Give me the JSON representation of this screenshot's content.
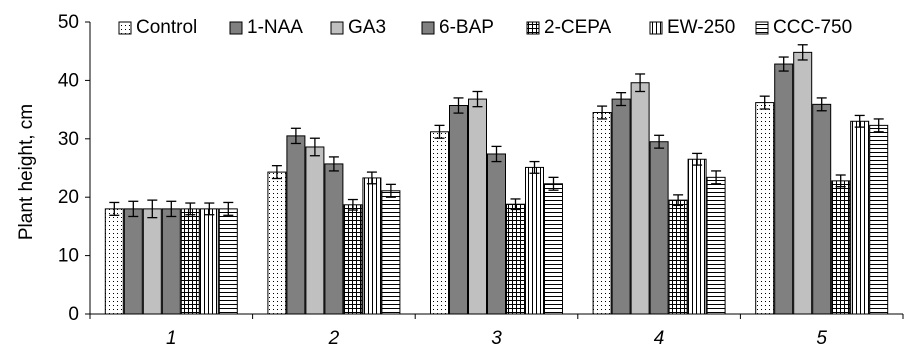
{
  "chart_data": {
    "type": "bar",
    "ylabel": "Plant height, cm",
    "xlabel": "",
    "ylim": [
      0,
      50
    ],
    "yticks": [
      0,
      10,
      20,
      30,
      40,
      50
    ],
    "categories": [
      "1",
      "2",
      "3",
      "4",
      "5"
    ],
    "error_bars": true,
    "legend_position": "top",
    "series": [
      {
        "name": "Control",
        "pattern": "dots",
        "values": [
          18,
          24.3,
          31.2,
          34.5,
          36.2
        ],
        "errors": [
          1.1,
          1.1,
          1.1,
          1.1,
          1.1
        ]
      },
      {
        "name": "1-NAA",
        "pattern": "dark-gray",
        "values": [
          18,
          30.5,
          35.7,
          36.8,
          42.8
        ],
        "errors": [
          1.3,
          1.3,
          1.3,
          1.1,
          1.2
        ]
      },
      {
        "name": "GA3",
        "pattern": "light-gray",
        "values": [
          18,
          28.6,
          36.8,
          39.6,
          44.8
        ],
        "errors": [
          1.5,
          1.5,
          1.3,
          1.5,
          1.3
        ]
      },
      {
        "name": "6-BAP",
        "pattern": "dark-gray",
        "values": [
          18,
          25.7,
          27.4,
          29.5,
          35.9
        ],
        "errors": [
          1.3,
          1.2,
          1.3,
          1.1,
          1.1
        ]
      },
      {
        "name": "2-CEPA",
        "pattern": "grid",
        "values": [
          18,
          18.7,
          18.8,
          19.5,
          22.8
        ],
        "errors": [
          1,
          0.9,
          0.9,
          0.9,
          1
        ]
      },
      {
        "name": "EW-250",
        "pattern": "vertical-lines",
        "values": [
          18,
          23.3,
          25.1,
          26.5,
          33
        ],
        "errors": [
          1,
          1,
          1,
          1,
          1
        ]
      },
      {
        "name": "CCC-750",
        "pattern": "horizontal-lines",
        "values": [
          18,
          21.1,
          22.3,
          23.4,
          32.3
        ],
        "errors": [
          1.1,
          1.1,
          1.1,
          1.1,
          1.1
        ]
      }
    ],
    "colors": {
      "dark-gray": "#808080",
      "light-gray": "#c0c0c0",
      "line": "#000000",
      "background": "#ffffff"
    }
  }
}
